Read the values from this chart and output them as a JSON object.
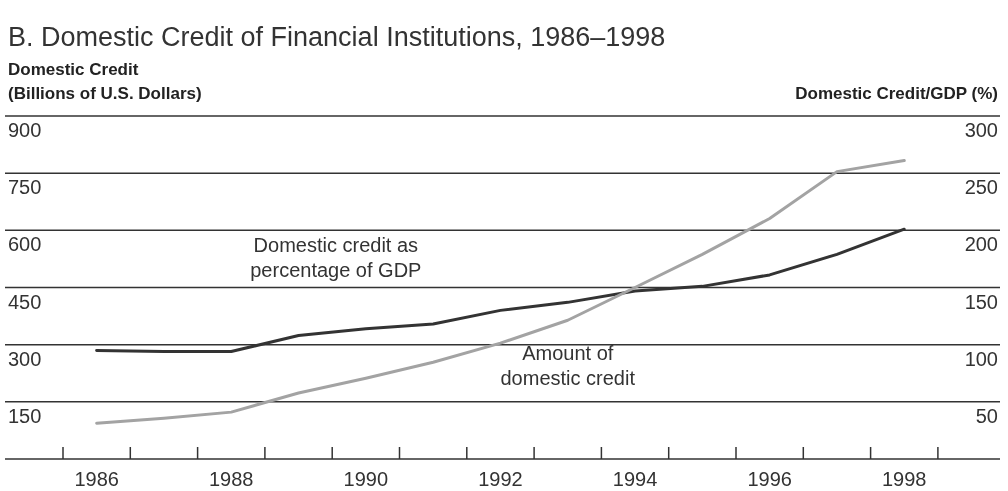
{
  "chart_data": {
    "type": "line",
    "title": "B. Domestic Credit of Financial Institutions, 1986–1998",
    "ylabel": "Domestic Credit\n(Billions of U.S. Dollars)",
    "y2label": "Domestic Credit/GDP (%)",
    "categories": [
      "1986",
      null,
      "1988",
      null,
      "1990",
      null,
      "1992",
      null,
      "1994",
      null,
      "1996",
      null,
      "1998"
    ],
    "series": [
      {
        "name": "Domestic credit as percentage of GDP",
        "color": "#333333",
        "axis": "y2",
        "values": [
          95,
          94,
          94,
          108,
          114,
          118,
          130,
          137,
          147,
          151,
          161,
          179,
          201
        ]
      },
      {
        "name": "Amount of domestic credit",
        "color": "#a3a3a3",
        "values": [
          94,
          107,
          123,
          173,
          212,
          254,
          304,
          364,
          450,
          537,
          631,
          754,
          783
        ]
      }
    ],
    "ylim": [
      0,
      900
    ],
    "yticks": [
      150,
      300,
      450,
      600,
      750,
      900
    ],
    "y2lim": [
      0,
      300
    ],
    "y2ticks": [
      50,
      100,
      150,
      200,
      250,
      300
    ],
    "grid": "y",
    "legend": false,
    "marker": "none",
    "line_style": "solid"
  }
}
